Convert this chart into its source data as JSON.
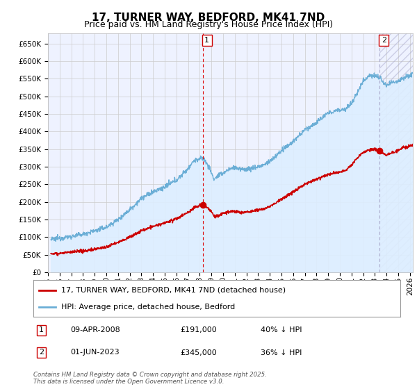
{
  "title": "17, TURNER WAY, BEDFORD, MK41 7ND",
  "subtitle": "Price paid vs. HM Land Registry's House Price Index (HPI)",
  "ylim": [
    0,
    680000
  ],
  "yticks": [
    0,
    50000,
    100000,
    150000,
    200000,
    250000,
    300000,
    350000,
    400000,
    450000,
    500000,
    550000,
    600000,
    650000
  ],
  "xlim_start": 1995.25,
  "xlim_end": 2026.25,
  "hpi_color": "#6baed6",
  "hpi_fill_color": "#ddeeff",
  "price_color": "#cc0000",
  "vline1_color": "#dd0000",
  "vline1_style": "--",
  "vline2_color": "#aaaacc",
  "vline2_style": "--",
  "grid_color": "#cccccc",
  "bg_color": "#ffffff",
  "plot_bg_color": "#eef2ff",
  "marker1_x": 2008.27,
  "marker1_price": 191000,
  "marker1_label": "1",
  "marker2_x": 2023.42,
  "marker2_price": 345000,
  "marker2_label": "2",
  "legend_line1": "17, TURNER WAY, BEDFORD, MK41 7ND (detached house)",
  "legend_line2": "HPI: Average price, detached house, Bedford",
  "table_row1": [
    "1",
    "09-APR-2008",
    "£191,000",
    "40% ↓ HPI"
  ],
  "table_row2": [
    "2",
    "01-JUN-2023",
    "£345,000",
    "36% ↓ HPI"
  ],
  "footnote": "Contains HM Land Registry data © Crown copyright and database right 2025.\nThis data is licensed under the Open Government Licence v3.0.",
  "title_fontsize": 11,
  "subtitle_fontsize": 9,
  "tick_fontsize": 7.5,
  "legend_fontsize": 8,
  "table_fontsize": 8
}
